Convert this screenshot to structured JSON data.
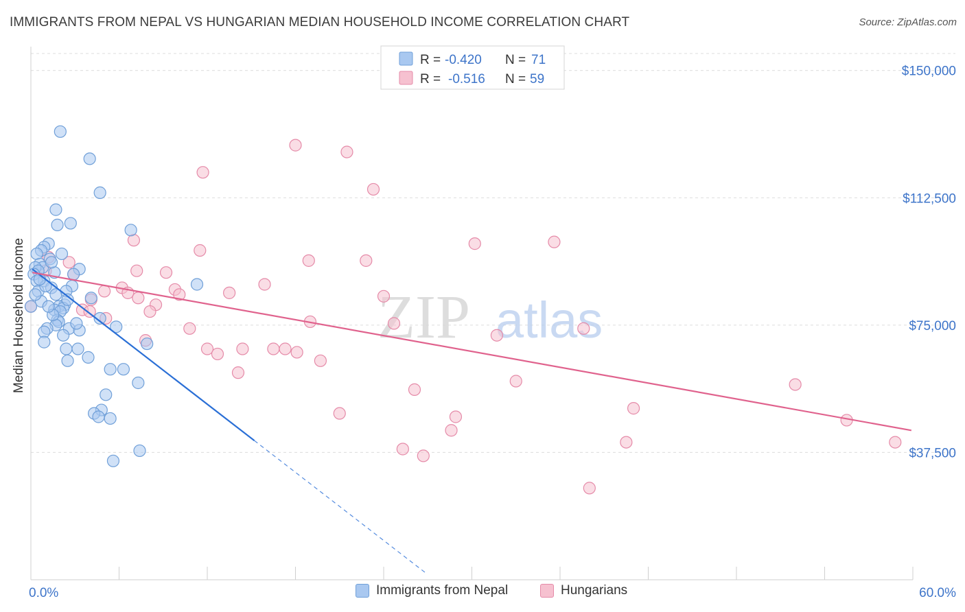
{
  "title": "IMMIGRANTS FROM NEPAL VS HUNGARIAN MEDIAN HOUSEHOLD INCOME CORRELATION CHART",
  "source": "Source: ZipAtlas.com",
  "watermark": {
    "part1": "ZIP",
    "part2": "atlas"
  },
  "colors": {
    "blue_fill": "#a9c8f0",
    "blue_stroke": "#6f9fd8",
    "blue_line": "#2a6fd6",
    "pink_fill": "#f6c1d0",
    "pink_stroke": "#e58aa8",
    "pink_line": "#e0628d",
    "axis_label": "#3d74c9",
    "grid": "#dcdcdc"
  },
  "legend_top": [
    {
      "r_label": "R = ",
      "r_value": "-0.420",
      "n_label": "N = ",
      "n_value": "71"
    },
    {
      "r_label": "R = ",
      "r_value": "-0.516",
      "n_label": "N = ",
      "n_value": "59"
    }
  ],
  "chart_data": {
    "type": "scatter",
    "title": "IMMIGRANTS FROM NEPAL VS HUNGARIAN MEDIAN HOUSEHOLD INCOME CORRELATION CHART",
    "xlabel": "",
    "ylabel": "Median Household Income",
    "xlim": [
      0,
      60
    ],
    "ylim": [
      0,
      155000
    ],
    "x_tick_labels": [
      "0.0%",
      "60.0%"
    ],
    "y_ticks": [
      37500,
      75000,
      112500,
      150000
    ],
    "y_tick_labels": [
      "$37,500",
      "$75,000",
      "$112,500",
      "$150,000"
    ],
    "series": [
      {
        "name": "Immigrants from Nepal",
        "color": "blue",
        "trend": {
          "x0": 0.1,
          "y0": 91500,
          "x1": 15.2,
          "y1": 41000,
          "dash_x_end": 26.8
        },
        "points": [
          [
            2.0,
            132000
          ],
          [
            4.0,
            124000
          ],
          [
            4.7,
            114000
          ],
          [
            1.7,
            109000
          ],
          [
            2.7,
            105000
          ],
          [
            1.8,
            104500
          ],
          [
            6.8,
            103000
          ],
          [
            1.2,
            99000
          ],
          [
            0.9,
            98000
          ],
          [
            0.7,
            97000
          ],
          [
            2.1,
            96000
          ],
          [
            0.4,
            96000
          ],
          [
            1.3,
            94500
          ],
          [
            0.6,
            93000
          ],
          [
            0.8,
            92000
          ],
          [
            0.3,
            92000
          ],
          [
            3.3,
            91500
          ],
          [
            0.5,
            91000
          ],
          [
            0.2,
            90000
          ],
          [
            1.6,
            90500
          ],
          [
            0.9,
            88000
          ],
          [
            0.4,
            88000
          ],
          [
            11.3,
            87000
          ],
          [
            2.8,
            86500
          ],
          [
            1.4,
            86000
          ],
          [
            0.5,
            85000
          ],
          [
            2.4,
            85000
          ],
          [
            1.7,
            84000
          ],
          [
            4.1,
            83000
          ],
          [
            0.7,
            82000
          ],
          [
            2.3,
            81000
          ],
          [
            1.9,
            80500
          ],
          [
            2.2,
            80000
          ],
          [
            1.6,
            79500
          ],
          [
            0.0,
            80500
          ],
          [
            2.0,
            79000
          ],
          [
            4.7,
            77000
          ],
          [
            1.8,
            76500
          ],
          [
            1.9,
            76000
          ],
          [
            1.7,
            75000
          ],
          [
            1.1,
            74000
          ],
          [
            2.6,
            74000
          ],
          [
            5.8,
            74500
          ],
          [
            3.3,
            73500
          ],
          [
            0.9,
            73000
          ],
          [
            2.2,
            72000
          ],
          [
            0.9,
            70000
          ],
          [
            7.9,
            69500
          ],
          [
            2.4,
            68000
          ],
          [
            3.2,
            68000
          ],
          [
            2.5,
            64500
          ],
          [
            3.9,
            65500
          ],
          [
            5.4,
            62000
          ],
          [
            6.3,
            62000
          ],
          [
            7.3,
            58000
          ],
          [
            5.1,
            54500
          ],
          [
            4.8,
            50000
          ],
          [
            4.3,
            49000
          ],
          [
            4.6,
            48000
          ],
          [
            5.4,
            47500
          ],
          [
            7.4,
            38000
          ],
          [
            5.6,
            35000
          ],
          [
            1.4,
            93500
          ],
          [
            2.9,
            90000
          ],
          [
            1.0,
            86500
          ],
          [
            2.5,
            82500
          ],
          [
            0.3,
            84000
          ],
          [
            1.5,
            78000
          ],
          [
            3.1,
            75500
          ],
          [
            0.6,
            88500
          ],
          [
            1.2,
            80500
          ]
        ]
      },
      {
        "name": "Hungarians",
        "color": "pink",
        "trend": {
          "x0": 0.1,
          "y0": 90500,
          "x1": 59.9,
          "y1": 44000
        },
        "points": [
          [
            18.0,
            128000
          ],
          [
            21.5,
            126000
          ],
          [
            11.7,
            120000
          ],
          [
            23.3,
            115000
          ],
          [
            7.0,
            100000
          ],
          [
            30.2,
            99000
          ],
          [
            35.6,
            99500
          ],
          [
            11.5,
            97000
          ],
          [
            1.2,
            95000
          ],
          [
            2.6,
            93500
          ],
          [
            18.9,
            94000
          ],
          [
            22.8,
            94000
          ],
          [
            1.0,
            91000
          ],
          [
            7.2,
            91000
          ],
          [
            9.2,
            90500
          ],
          [
            2.9,
            90000
          ],
          [
            15.9,
            87000
          ],
          [
            6.2,
            86000
          ],
          [
            9.8,
            85500
          ],
          [
            5.0,
            85000
          ],
          [
            6.6,
            84500
          ],
          [
            10.1,
            84000
          ],
          [
            13.5,
            84500
          ],
          [
            24.0,
            83500
          ],
          [
            7.3,
            83000
          ],
          [
            4.1,
            82500
          ],
          [
            8.5,
            81000
          ],
          [
            3.5,
            79500
          ],
          [
            4.0,
            79000
          ],
          [
            8.1,
            79000
          ],
          [
            5.1,
            77000
          ],
          [
            19.0,
            76000
          ],
          [
            24.7,
            75500
          ],
          [
            37.6,
            74000
          ],
          [
            10.8,
            74000
          ],
          [
            31.7,
            72000
          ],
          [
            7.8,
            70500
          ],
          [
            12.0,
            68000
          ],
          [
            14.4,
            68000
          ],
          [
            16.5,
            68000
          ],
          [
            17.3,
            68000
          ],
          [
            18.1,
            67000
          ],
          [
            12.7,
            66500
          ],
          [
            19.7,
            64500
          ],
          [
            14.1,
            61000
          ],
          [
            33.0,
            58500
          ],
          [
            52.0,
            57500
          ],
          [
            26.1,
            56000
          ],
          [
            41.0,
            50500
          ],
          [
            21.0,
            49000
          ],
          [
            28.9,
            48000
          ],
          [
            28.6,
            44000
          ],
          [
            55.5,
            47000
          ],
          [
            40.5,
            40500
          ],
          [
            58.8,
            40500
          ],
          [
            25.3,
            38500
          ],
          [
            26.7,
            36500
          ],
          [
            38.0,
            27000
          ],
          [
            0.0,
            80500
          ]
        ]
      }
    ]
  }
}
